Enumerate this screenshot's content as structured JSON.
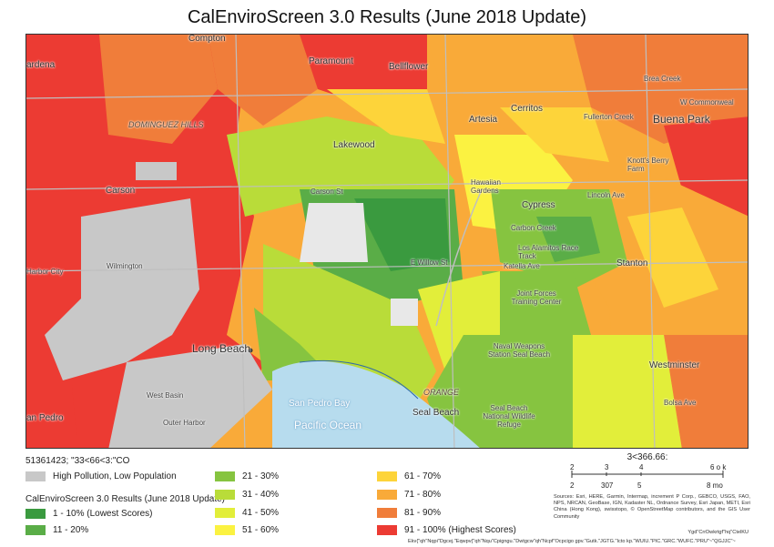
{
  "title": "CalEnviroScreen 3.0 Results (June 2018 Update)",
  "map": {
    "places": {
      "compton": "Compton",
      "gardena": "ardena",
      "paramount": "Paramount",
      "bellflower": "Bellflower",
      "dominguez_hills": "DOMINGUEZ HILLS",
      "lakewood": "Lakewood",
      "carson": "Carson",
      "artesia": "Artesia",
      "cerritos": "Cerritos",
      "buena_park": "Buena Park",
      "fullerton_creek": "Fullerton Creek",
      "brea_creek": "Brea Creek",
      "hawaiian_gardens": "Hawaiian Gardens",
      "cypress": "Cypress",
      "carbon_creek": "Carbon Creek",
      "los_alamitos": "Los Alamitos Race Track",
      "katella": "Katella Ave",
      "stanton": "Stanton",
      "joint_forces": "Joint Forces Training Center",
      "harbor_city": "Harbor City",
      "wilmington": "Wilmington",
      "long_beach": "Long Beach",
      "naval_weapons": "Naval Weapons Station Seal Beach",
      "westminster": "Westminster",
      "bolsa": "Bolsa Ave",
      "seal_beach": "Seal Beach",
      "seal_beach_refuge": "Seal Beach National Wildlife Refuge",
      "san_pedro_bay": "San Pedro Bay",
      "pacific_ocean": "Pacific Ocean",
      "san_pedro": "an Pedro",
      "orange": "ORANGE",
      "west_basin": "West Basin",
      "outer_harbor": "Outer Harbor",
      "carson_st": "Carson St",
      "e_willow_st": "E Willow St",
      "lincoln_ave": "Lincoln Ave",
      "w_commonwealth": "W Commonweal",
      "knotts": "Knott's Berry Farm"
    }
  },
  "legend": {
    "code": "51361423; \"33<66<3:\"CO",
    "grey_label": "High Pollution, Low Population",
    "subtitle": "CalEnviroScreen 3.0 Results (June 2018 Update)",
    "classes": [
      {
        "label": "1 - 10% (Lowest Scores)",
        "color": "#3a9a3f"
      },
      {
        "label": "11 - 20%",
        "color": "#5aad47"
      },
      {
        "label": "21 - 30%",
        "color": "#86c440"
      },
      {
        "label": "31 - 40%",
        "color": "#b9dc39"
      },
      {
        "label": "41 - 50%",
        "color": "#e2ee3a"
      },
      {
        "label": "51 - 60%",
        "color": "#fbf241"
      },
      {
        "label": "61 - 70%",
        "color": "#fdd43a"
      },
      {
        "label": "71 - 80%",
        "color": "#f9aa39"
      },
      {
        "label": "81 - 90%",
        "color": "#f07d3a"
      },
      {
        "label": "91 - 100% (Highest Scores)",
        "color": "#ec3b33"
      }
    ],
    "grey_color": "#c8c8c8"
  },
  "scalebar": {
    "title": "3<366.66:",
    "top_ticks": [
      "2",
      "3",
      "4",
      "6 o k"
    ],
    "bottom_ticks": [
      "2",
      "307",
      "5",
      "8 mo"
    ]
  },
  "sources": "Sources: Esri, HERE, Garmin, Intermap, increment P Corp., GEBCO, USGS, FAO, NPS, NRCAN, GeoBase, IGN, Kadaster NL, Ordnance Survey, Esri Japan, METI, Esri China (Hong Kong), swisstopo, © OpenStreetMap contributors, and the GIS User Community",
  "footer1": "Ygd\"CrrDwkrtgf\"hq\"CtelKU",
  "footer2": "Ekv{\"qh\"Nqpi\"Dgcej.\"Eqwpv{\"qh\"Nqu\"Cpigngu.\"Dwtgcw\"qh\"Ncpf\"Ocpcigo gpv.\"Gutk.\"JGTG.\"Icto kp.\"WUIU.\"PIC.\"GRC.\"WUFC.\"PRU\"~\"QGJJC\"~"
}
